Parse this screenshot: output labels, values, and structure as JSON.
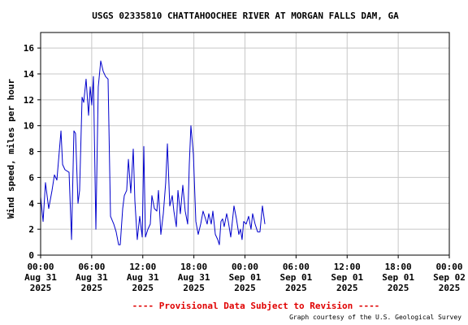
{
  "chart_data": {
    "type": "line",
    "title": "USGS 02335810 CHATTAHOOCHEE RIVER AT MORGAN FALLS DAM, GA",
    "ylabel": "Wind speed, miles per hour",
    "note": "---- Provisional Data Subject to Revision ----",
    "credit": "Graph courtesy of the U.S. Geological Survey",
    "grid": true,
    "xlim": [
      0,
      48
    ],
    "ylim": [
      0,
      17.2
    ],
    "yticks": [
      0,
      2,
      4,
      6,
      8,
      10,
      12,
      14,
      16
    ],
    "xticks": [
      {
        "value": 0,
        "label": "00:00",
        "date": "Aug 31",
        "year": "2025"
      },
      {
        "value": 6,
        "label": "06:00",
        "date": "Aug 31",
        "year": "2025"
      },
      {
        "value": 12,
        "label": "12:00",
        "date": "Aug 31",
        "year": "2025"
      },
      {
        "value": 18,
        "label": "18:00",
        "date": "Aug 31",
        "year": "2025"
      },
      {
        "value": 24,
        "label": "00:00",
        "date": "Sep 01",
        "year": "2025"
      },
      {
        "value": 30,
        "label": "06:00",
        "date": "Sep 01",
        "year": "2025"
      },
      {
        "value": 36,
        "label": "12:00",
        "date": "Sep 01",
        "year": "2025"
      },
      {
        "value": 42,
        "label": "18:00",
        "date": "Sep 01",
        "year": "2025"
      },
      {
        "value": 48,
        "label": "00:00",
        "date": "Sep 02",
        "year": "2025"
      }
    ],
    "series": [
      {
        "color": "#0000cc",
        "x": [
          0,
          0.29,
          0.57,
          0.95,
          1.34,
          1.62,
          1.91,
          2.19,
          2.39,
          2.58,
          2.86,
          3.34,
          3.63,
          3.91,
          4.1,
          4.39,
          4.58,
          4.87,
          5.06,
          5.34,
          5.63,
          5.82,
          6.01,
          6.2,
          6.49,
          6.77,
          7.06,
          7.35,
          7.63,
          7.92,
          8.21,
          8.59,
          8.87,
          9.16,
          9.35,
          9.64,
          9.83,
          10.11,
          10.31,
          10.59,
          10.88,
          11.07,
          11.35,
          11.64,
          11.93,
          12.12,
          12.31,
          12.6,
          12.88,
          13.07,
          13.36,
          13.65,
          13.84,
          14.12,
          14.41,
          14.69,
          14.89,
          15.17,
          15.46,
          15.65,
          15.94,
          16.13,
          16.41,
          16.7,
          16.98,
          17.27,
          17.46,
          17.65,
          17.94,
          18.23,
          18.51,
          18.8,
          19.08,
          19.37,
          19.56,
          19.75,
          20.04,
          20.23,
          20.52,
          20.8,
          20.99,
          21.18,
          21.37,
          21.56,
          21.85,
          22.04,
          22.33,
          22.52,
          22.71,
          23.0,
          23.28,
          23.47,
          23.66,
          23.85,
          24.14,
          24.43,
          24.71,
          24.9,
          25.19,
          25.48,
          25.76,
          26.05,
          26.34
        ],
        "values": [
          4.5,
          2.6,
          5.6,
          3.6,
          5.0,
          6.2,
          5.8,
          8.0,
          9.6,
          7.0,
          6.6,
          6.4,
          1.2,
          9.6,
          9.4,
          4.0,
          5.0,
          12.2,
          11.8,
          13.6,
          10.8,
          13.0,
          11.6,
          13.8,
          2.0,
          13.0,
          15.0,
          14.2,
          13.8,
          13.6,
          3.0,
          2.4,
          1.8,
          0.8,
          0.8,
          3.6,
          4.6,
          5.0,
          7.4,
          4.8,
          8.2,
          4.2,
          1.2,
          3.0,
          1.4,
          8.4,
          1.4,
          2.0,
          2.4,
          4.6,
          3.6,
          3.4,
          5.0,
          1.6,
          3.2,
          5.6,
          8.6,
          3.8,
          4.6,
          3.4,
          2.2,
          5.0,
          3.2,
          5.4,
          3.4,
          2.4,
          7.0,
          10.0,
          7.8,
          2.6,
          1.6,
          2.4,
          3.4,
          2.8,
          2.4,
          3.2,
          2.4,
          3.4,
          1.6,
          1.2,
          0.8,
          2.6,
          2.8,
          2.2,
          3.2,
          2.6,
          1.4,
          2.6,
          3.8,
          2.8,
          1.6,
          2.0,
          1.2,
          2.6,
          2.4,
          3.0,
          2.0,
          3.2,
          2.4,
          1.8,
          1.8,
          3.8,
          2.4
        ]
      }
    ]
  }
}
